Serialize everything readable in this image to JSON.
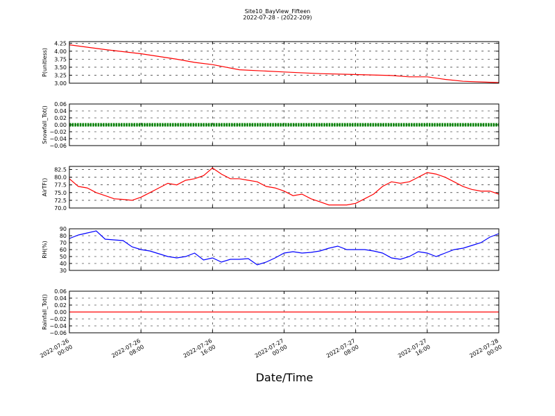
{
  "chart_data": {
    "type": "line",
    "title": "Site10_BayView_Fifteen",
    "subtitle": "2022-07-28 - (2022-209)",
    "xlabel": "Date/Time",
    "x_ticks": [
      {
        "l1": "2022-07-26",
        "l2": "00:00"
      },
      {
        "l1": "2022-07-26",
        "l2": "08:00"
      },
      {
        "l1": "2022-07-26",
        "l2": "16:00"
      },
      {
        "l1": "2022-07-27",
        "l2": "00:00"
      },
      {
        "l1": "2022-07-27",
        "l2": "08:00"
      },
      {
        "l1": "2022-07-27",
        "l2": "16:00"
      },
      {
        "l1": "2022-07-28",
        "l2": "00:00"
      }
    ],
    "xlim": [
      "2022-07-26 00:00",
      "2022-07-28 00:00"
    ],
    "grid": true,
    "panels": [
      {
        "ylabel": "P(unitless)",
        "color": "#ff0000",
        "marker": "line",
        "ylim": [
          3.0,
          4.3
        ],
        "yticks": [
          "3.00",
          "3.25",
          "3.50",
          "3.75",
          "4.00",
          "4.25"
        ],
        "series": {
          "x": [
            "2022-07-26 00:00",
            "2022-07-26 04:00",
            "2022-07-26 08:00",
            "2022-07-26 12:00",
            "2022-07-26 14:00",
            "2022-07-26 16:00",
            "2022-07-26 19:00",
            "2022-07-27 00:00",
            "2022-07-27 04:00",
            "2022-07-27 08:00",
            "2022-07-27 12:00",
            "2022-07-27 14:00",
            "2022-07-27 16:00",
            "2022-07-27 18:00",
            "2022-07-27 20:00",
            "2022-07-28 00:00"
          ],
          "y": [
            4.2,
            4.05,
            3.92,
            3.75,
            3.65,
            3.58,
            3.42,
            3.35,
            3.3,
            3.27,
            3.24,
            3.2,
            3.2,
            3.12,
            3.06,
            3.02
          ]
        }
      },
      {
        "ylabel": "Snowfall_Tot()",
        "color": "#008000",
        "marker": "dots",
        "ylim": [
          -0.06,
          0.06
        ],
        "yticks": [
          "−0.06",
          "−0.04",
          "−0.02",
          "0.00",
          "0.02",
          "0.04",
          "0.06"
        ],
        "series": {
          "x": [
            "2022-07-26 00:00",
            "2022-07-28 00:00"
          ],
          "y": [
            0.0,
            0.0
          ]
        }
      },
      {
        "ylabel": "AirTF()",
        "color": "#ff0000",
        "marker": "line",
        "ylim": [
          70.0,
          83.5
        ],
        "yticks": [
          "70.0",
          "72.5",
          "75.0",
          "77.5",
          "80.0",
          "82.5"
        ],
        "series": {
          "x": [
            "2022-07-26 00:00",
            "2022-07-26 01:00",
            "2022-07-26 02:00",
            "2022-07-26 03:00",
            "2022-07-26 04:00",
            "2022-07-26 05:00",
            "2022-07-26 06:00",
            "2022-07-26 07:00",
            "2022-07-26 08:00",
            "2022-07-26 09:00",
            "2022-07-26 10:00",
            "2022-07-26 11:00",
            "2022-07-26 12:00",
            "2022-07-26 13:00",
            "2022-07-26 14:00",
            "2022-07-26 15:00",
            "2022-07-26 16:00",
            "2022-07-26 17:00",
            "2022-07-26 18:00",
            "2022-07-26 19:00",
            "2022-07-26 20:00",
            "2022-07-26 21:00",
            "2022-07-26 22:00",
            "2022-07-26 23:00",
            "2022-07-27 00:00",
            "2022-07-27 01:00",
            "2022-07-27 02:00",
            "2022-07-27 03:00",
            "2022-07-27 04:00",
            "2022-07-27 05:00",
            "2022-07-27 06:00",
            "2022-07-27 07:00",
            "2022-07-27 08:00",
            "2022-07-27 09:00",
            "2022-07-27 10:00",
            "2022-07-27 11:00",
            "2022-07-27 12:00",
            "2022-07-27 13:00",
            "2022-07-27 14:00",
            "2022-07-27 15:00",
            "2022-07-27 16:00",
            "2022-07-27 17:00",
            "2022-07-27 18:00",
            "2022-07-27 19:00",
            "2022-07-27 20:00",
            "2022-07-27 21:00",
            "2022-07-27 22:00",
            "2022-07-27 23:00",
            "2022-07-28 00:00"
          ],
          "y": [
            79.5,
            77.0,
            76.5,
            75.0,
            74.0,
            73.0,
            72.8,
            72.5,
            73.5,
            75.0,
            76.5,
            78.0,
            77.5,
            79.0,
            79.5,
            80.5,
            83.0,
            81.0,
            79.5,
            79.5,
            79.0,
            78.5,
            77.0,
            76.5,
            75.5,
            74.0,
            74.5,
            73.0,
            72.0,
            71.0,
            71.0,
            71.0,
            71.5,
            73.0,
            74.5,
            77.0,
            78.5,
            78.0,
            78.5,
            80.0,
            81.5,
            81.0,
            80.0,
            78.5,
            77.0,
            76.0,
            75.5,
            75.5,
            74.5
          ]
        }
      },
      {
        "ylabel": "RH(%)",
        "color": "#0000ff",
        "marker": "line",
        "ylim": [
          30,
          90
        ],
        "yticks": [
          "30",
          "40",
          "50",
          "60",
          "70",
          "80",
          "90"
        ],
        "series": {
          "x": [
            "2022-07-26 00:00",
            "2022-07-26 01:00",
            "2022-07-26 02:00",
            "2022-07-26 03:00",
            "2022-07-26 04:00",
            "2022-07-26 05:00",
            "2022-07-26 06:00",
            "2022-07-26 07:00",
            "2022-07-26 08:00",
            "2022-07-26 09:00",
            "2022-07-26 10:00",
            "2022-07-26 11:00",
            "2022-07-26 12:00",
            "2022-07-26 13:00",
            "2022-07-26 14:00",
            "2022-07-26 15:00",
            "2022-07-26 16:00",
            "2022-07-26 17:00",
            "2022-07-26 18:00",
            "2022-07-26 19:00",
            "2022-07-26 20:00",
            "2022-07-26 21:00",
            "2022-07-26 22:00",
            "2022-07-26 23:00",
            "2022-07-27 00:00",
            "2022-07-27 01:00",
            "2022-07-27 02:00",
            "2022-07-27 03:00",
            "2022-07-27 04:00",
            "2022-07-27 05:00",
            "2022-07-27 06:00",
            "2022-07-27 07:00",
            "2022-07-27 08:00",
            "2022-07-27 09:00",
            "2022-07-27 10:00",
            "2022-07-27 11:00",
            "2022-07-27 12:00",
            "2022-07-27 13:00",
            "2022-07-27 14:00",
            "2022-07-27 15:00",
            "2022-07-27 16:00",
            "2022-07-27 17:00",
            "2022-07-27 18:00",
            "2022-07-27 19:00",
            "2022-07-27 20:00",
            "2022-07-27 21:00",
            "2022-07-27 22:00",
            "2022-07-27 23:00",
            "2022-07-28 00:00"
          ],
          "y": [
            76,
            81,
            84,
            87,
            75,
            74,
            73,
            64,
            60,
            58,
            54,
            50,
            48,
            50,
            55,
            45,
            48,
            42,
            46,
            46,
            47,
            38,
            42,
            48,
            55,
            57,
            55,
            56,
            58,
            62,
            65,
            60,
            60,
            60,
            58,
            55,
            48,
            46,
            50,
            57,
            55,
            50,
            55,
            60,
            62,
            66,
            70,
            78,
            83
          ]
        }
      },
      {
        "ylabel": "Rainfall_Tot()",
        "color": "#ff0000",
        "marker": "line",
        "ylim": [
          -0.06,
          0.06
        ],
        "yticks": [
          "−0.06",
          "−0.04",
          "−0.02",
          "0.00",
          "0.02",
          "0.04",
          "0.06"
        ],
        "series": {
          "x": [
            "2022-07-26 00:00",
            "2022-07-28 00:00"
          ],
          "y": [
            0.0,
            0.0
          ]
        }
      }
    ]
  }
}
